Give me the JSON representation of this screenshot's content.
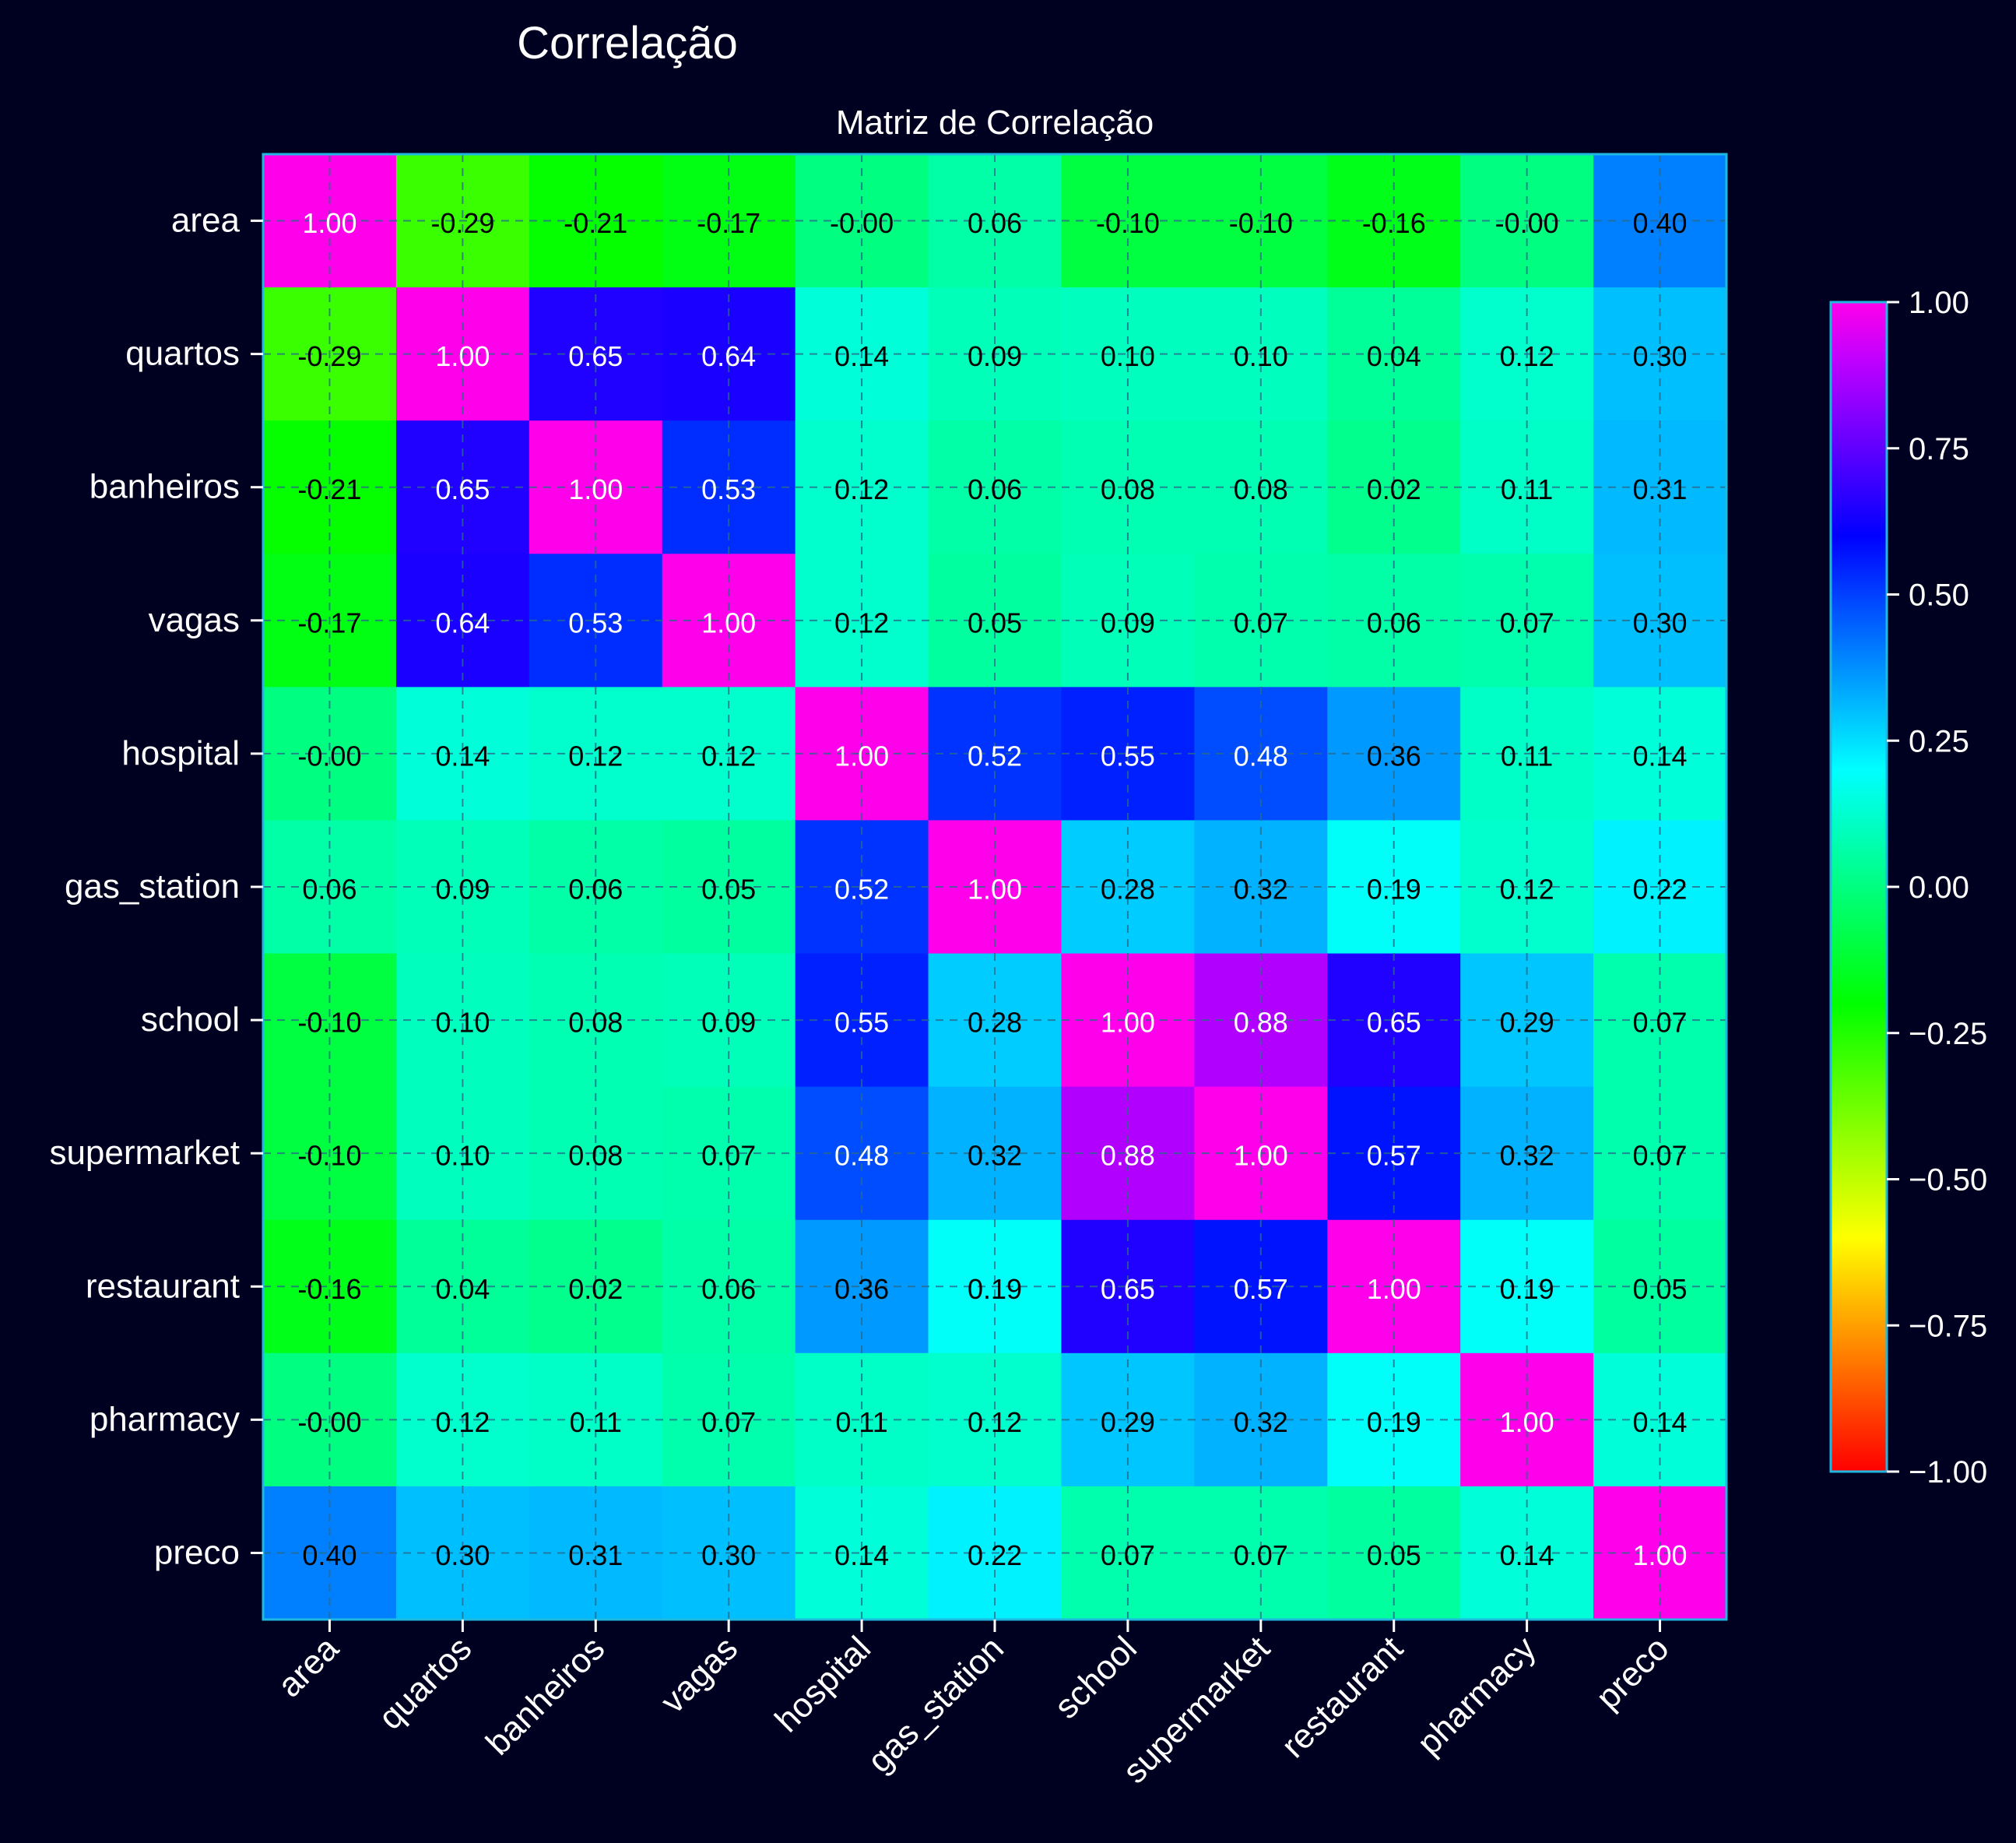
{
  "chart_data": {
    "type": "heatmap",
    "title": "Correlação",
    "subtitle": "Matriz de Correlação",
    "labels": [
      "area",
      "quartos",
      "banheiros",
      "vagas",
      "hospital",
      "gas_station",
      "school",
      "supermarket",
      "restaurant",
      "pharmacy",
      "preco"
    ],
    "matrix": [
      [
        1.0,
        -0.29,
        -0.21,
        -0.17,
        -0.0,
        0.06,
        -0.1,
        -0.1,
        -0.16,
        -0.0,
        0.4
      ],
      [
        -0.29,
        1.0,
        0.65,
        0.64,
        0.14,
        0.09,
        0.1,
        0.1,
        0.04,
        0.12,
        0.3
      ],
      [
        -0.21,
        0.65,
        1.0,
        0.53,
        0.12,
        0.06,
        0.08,
        0.08,
        0.02,
        0.11,
        0.31
      ],
      [
        -0.17,
        0.64,
        0.53,
        1.0,
        0.12,
        0.05,
        0.09,
        0.07,
        0.06,
        0.07,
        0.3
      ],
      [
        -0.0,
        0.14,
        0.12,
        0.12,
        1.0,
        0.52,
        0.55,
        0.48,
        0.36,
        0.11,
        0.14
      ],
      [
        0.06,
        0.09,
        0.06,
        0.05,
        0.52,
        1.0,
        0.28,
        0.32,
        0.19,
        0.12,
        0.22
      ],
      [
        -0.1,
        0.1,
        0.08,
        0.09,
        0.55,
        0.28,
        1.0,
        0.88,
        0.65,
        0.29,
        0.07
      ],
      [
        -0.1,
        0.1,
        0.08,
        0.07,
        0.48,
        0.32,
        0.88,
        1.0,
        0.57,
        0.32,
        0.07
      ],
      [
        -0.16,
        0.04,
        0.02,
        0.06,
        0.36,
        0.19,
        0.65,
        0.57,
        1.0,
        0.19,
        0.05
      ],
      [
        -0.0,
        0.12,
        0.11,
        0.07,
        0.11,
        0.12,
        0.29,
        0.32,
        0.19,
        1.0,
        0.14
      ],
      [
        0.4,
        0.3,
        0.31,
        0.3,
        0.14,
        0.22,
        0.07,
        0.07,
        0.05,
        0.14,
        1.0
      ]
    ],
    "vmin": -1.0,
    "vmax": 1.0,
    "colormap": "gist_rainbow_r",
    "colorbar_ticks": [
      1.0,
      0.75,
      0.5,
      0.25,
      0.0,
      -0.25,
      -0.5,
      -0.75,
      -1.0
    ],
    "colorbar_tick_labels": [
      "1.00",
      "0.75",
      "0.50",
      "0.25",
      "0.00",
      "−0.25",
      "−0.50",
      "−0.75",
      "−1.00"
    ],
    "grid": true,
    "annotations_format": "0.00",
    "colors": {
      "background": "#000020",
      "axes_edge": "#1fb8e0",
      "text": "#ffffff",
      "grid": "#2a6a8a"
    }
  }
}
